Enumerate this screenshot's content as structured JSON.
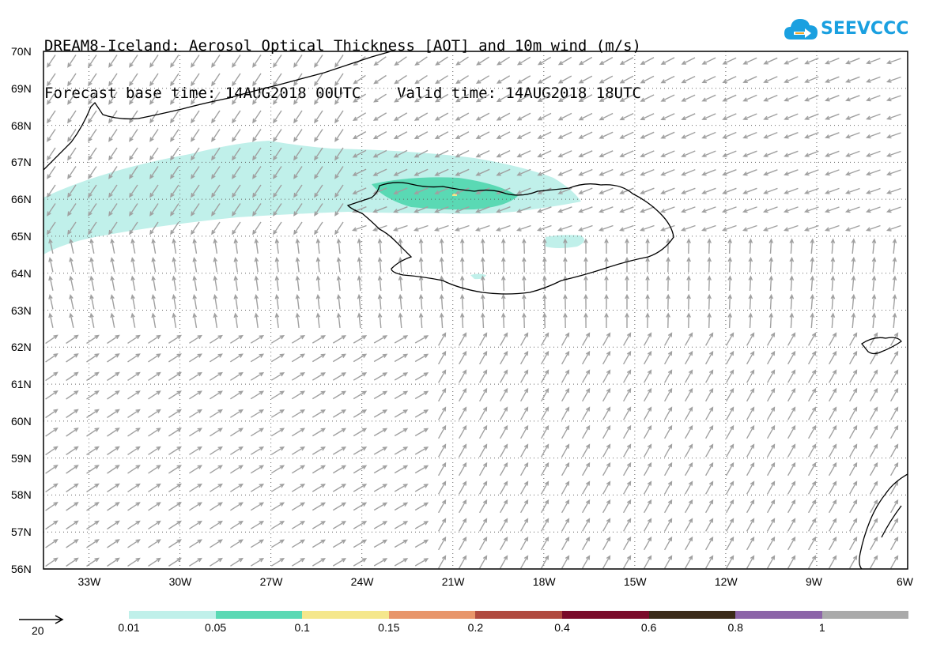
{
  "header": {
    "title_line1": "DREAM8-Iceland: Aerosol Optical Thickness [AOT] and 10m wind (m/s)",
    "title_line2": "Forecast base time: 14AUG2018 00UTC    Valid time: 14AUG2018 18UTC"
  },
  "logo": {
    "text": "SEEVCCC",
    "icon": "cloud-arrow-icon",
    "color": "#1aa0e0"
  },
  "map": {
    "lat_labels": [
      "70N",
      "69N",
      "68N",
      "67N",
      "66N",
      "65N",
      "64N",
      "63N",
      "62N",
      "61N",
      "60N",
      "59N",
      "58N",
      "57N",
      "56N"
    ],
    "lon_labels": [
      "33W",
      "30W",
      "27W",
      "24W",
      "21W",
      "18W",
      "15W",
      "12W",
      "9W",
      "6W"
    ],
    "lat_range": [
      56,
      70
    ],
    "lon_range": [
      -34.5,
      -6
    ],
    "grid": "dotted",
    "coastline_color": "#000000",
    "wind_arrow_color": "#a0a0a0"
  },
  "legend": {
    "colors": [
      "#c0f0ea",
      "#5ad9b4",
      "#f5e78c",
      "#e8956a",
      "#b04a3f",
      "#7a0a2a",
      "#3a2a18",
      "#8c64a8",
      "#aaaaaa"
    ],
    "labels": [
      "0.01",
      "0.05",
      "0.1",
      "0.15",
      "0.2",
      "0.4",
      "0.6",
      "0.8",
      "1"
    ],
    "reference_arrow_label": "20"
  }
}
